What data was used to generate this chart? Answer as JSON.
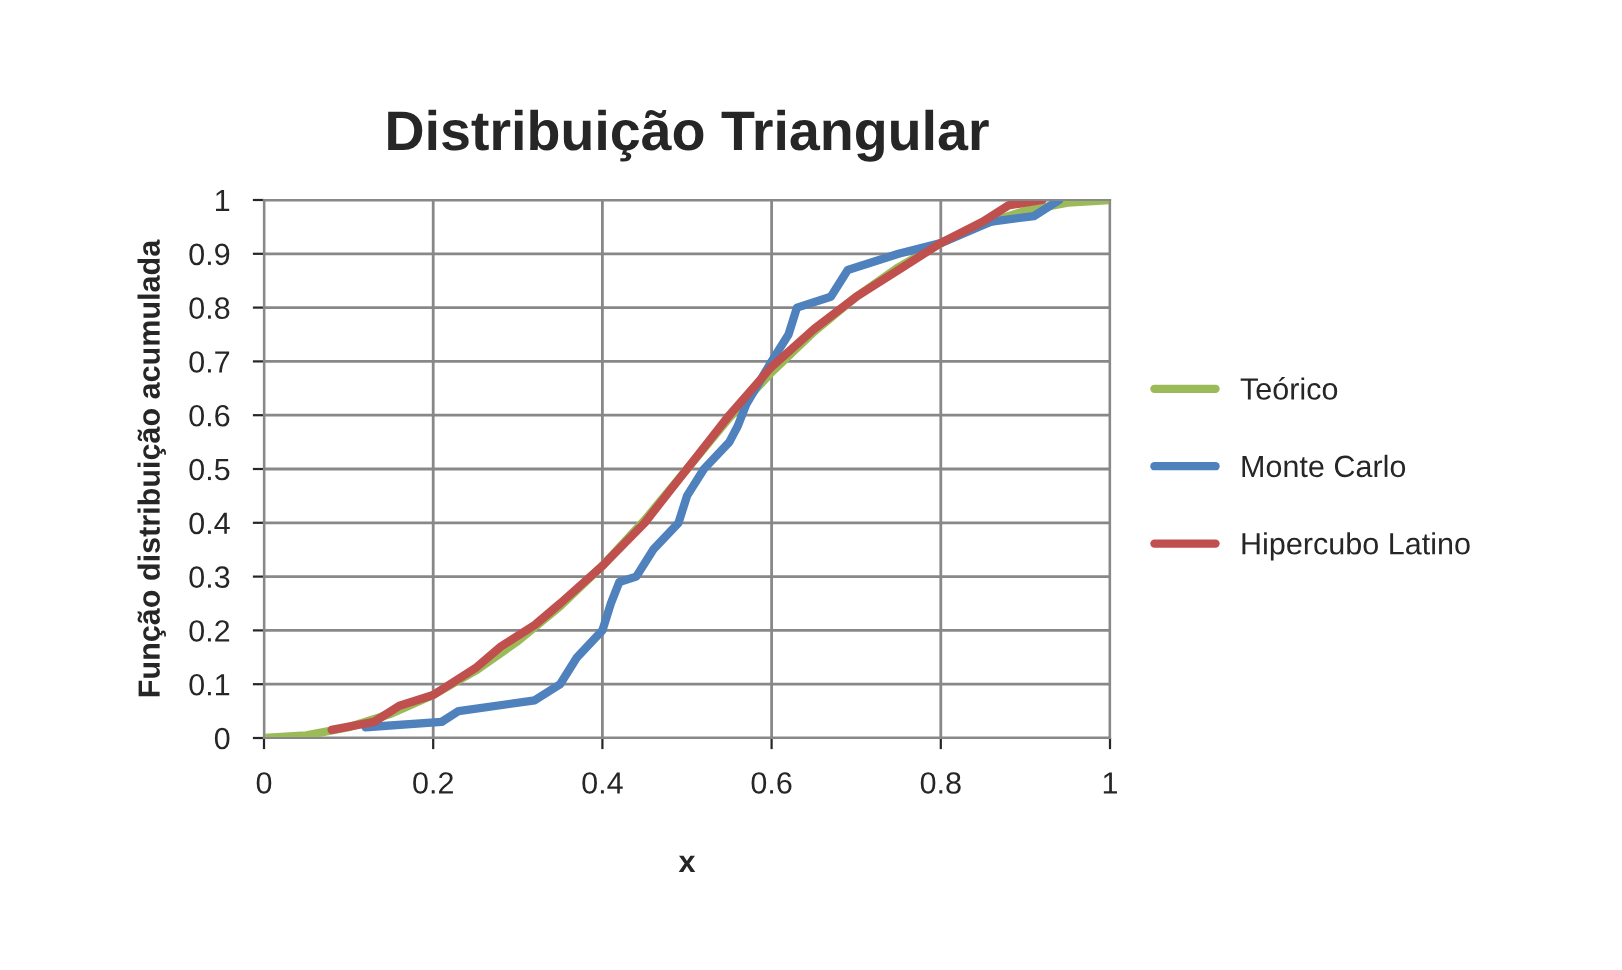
{
  "chart_data": {
    "type": "line",
    "title": "Distribuição Triangular",
    "xlabel": "x",
    "ylabel": "Função distribuição acumulada",
    "xlim": [
      0,
      1
    ],
    "xticks": [
      0,
      0.2,
      0.4,
      0.6,
      0.8,
      1
    ],
    "ylim": [
      0,
      1
    ],
    "yticks": [
      0,
      0.1,
      0.2,
      0.3,
      0.4,
      0.5,
      0.6,
      0.7,
      0.8,
      0.9,
      1
    ],
    "grid": true,
    "legend": "right",
    "marker": "none",
    "line_style": "solid",
    "series": [
      {
        "name": "Teórico",
        "color": "#9bbb59",
        "x": [
          0,
          0.05,
          0.1,
          0.15,
          0.2,
          0.25,
          0.3,
          0.35,
          0.4,
          0.45,
          0.5,
          0.55,
          0.6,
          0.65,
          0.7,
          0.75,
          0.8,
          0.85,
          0.9,
          0.95,
          1
        ],
        "values": [
          0,
          0.005,
          0.02,
          0.045,
          0.08,
          0.125,
          0.18,
          0.245,
          0.32,
          0.405,
          0.5,
          0.595,
          0.68,
          0.755,
          0.82,
          0.875,
          0.92,
          0.955,
          0.98,
          0.995,
          1
        ]
      },
      {
        "name": "Monte Carlo",
        "color": "#4f81bd",
        "x": [
          0.12,
          0.21,
          0.23,
          0.32,
          0.35,
          0.37,
          0.4,
          0.41,
          0.42,
          0.44,
          0.46,
          0.49,
          0.5,
          0.52,
          0.55,
          0.56,
          0.57,
          0.6,
          0.62,
          0.63,
          0.67,
          0.69,
          0.75,
          0.8,
          0.86,
          0.91,
          0.94
        ],
        "values": [
          0.02,
          0.03,
          0.05,
          0.07,
          0.1,
          0.15,
          0.2,
          0.25,
          0.29,
          0.3,
          0.35,
          0.4,
          0.45,
          0.5,
          0.55,
          0.58,
          0.62,
          0.7,
          0.75,
          0.8,
          0.82,
          0.87,
          0.9,
          0.92,
          0.96,
          0.97,
          1
        ]
      },
      {
        "name": "Hipercubo Latino",
        "color": "#c0504d",
        "x": [
          0.08,
          0.13,
          0.16,
          0.2,
          0.22,
          0.25,
          0.28,
          0.32,
          0.35,
          0.4,
          0.45,
          0.5,
          0.55,
          0.6,
          0.65,
          0.7,
          0.75,
          0.8,
          0.85,
          0.88,
          0.92
        ],
        "values": [
          0.015,
          0.03,
          0.06,
          0.08,
          0.1,
          0.13,
          0.17,
          0.21,
          0.25,
          0.32,
          0.4,
          0.5,
          0.6,
          0.69,
          0.76,
          0.82,
          0.87,
          0.92,
          0.96,
          0.99,
          1
        ]
      }
    ]
  }
}
